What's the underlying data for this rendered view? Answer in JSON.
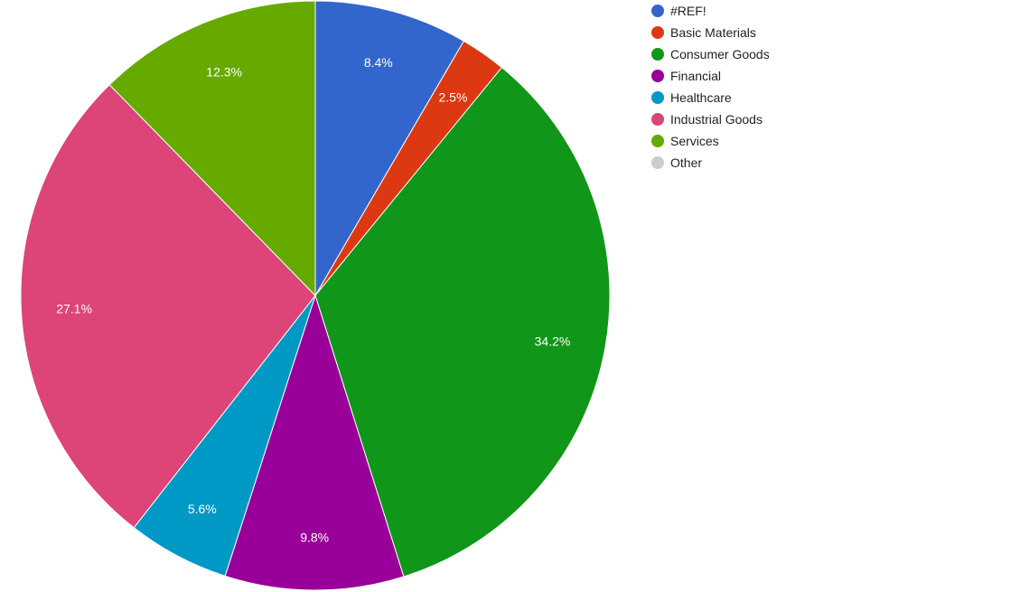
{
  "chart_data": {
    "type": "pie",
    "categories": [
      "#REF!",
      "Basic Materials",
      "Consumer Goods",
      "Financial",
      "Healthcare",
      "Industrial Goods",
      "Services",
      "Other"
    ],
    "values": [
      8.4,
      2.5,
      34.2,
      9.8,
      5.6,
      27.1,
      12.3,
      0
    ],
    "labels": [
      "8.4%",
      "2.5%",
      "34.2%",
      "9.8%",
      "5.6%",
      "27.1%",
      "12.3%",
      ""
    ],
    "colors": [
      "#3366cc",
      "#dc3912",
      "#109618",
      "#990099",
      "#0099c6",
      "#dd4477",
      "#66aa00",
      "#cccccc"
    ],
    "start_angle": "12 o'clock",
    "direction": "clockwise",
    "legend_position": "right"
  }
}
